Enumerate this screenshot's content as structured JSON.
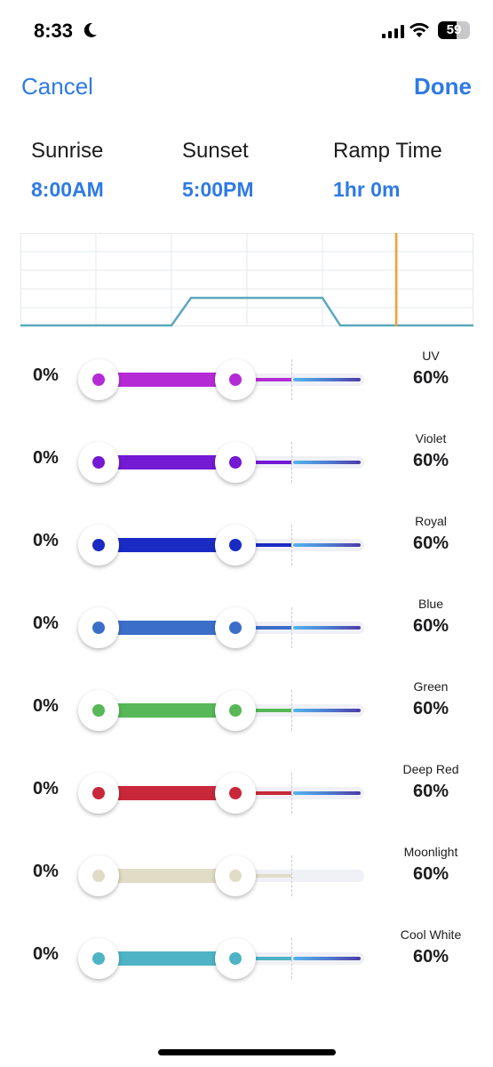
{
  "status": {
    "time": "8:33",
    "battery": "59"
  },
  "nav": {
    "cancel": "Cancel",
    "done": "Done"
  },
  "times": {
    "sunrise_label": "Sunrise",
    "sunrise_value": "8:00AM",
    "sunset_label": "Sunset",
    "sunset_value": "5:00PM",
    "ramp_label": "Ramp Time",
    "ramp_value": "1hr 0m"
  },
  "colors": {
    "accent": "#2f7ae5",
    "schedule_line": "#5aa8be",
    "current_time_marker": "#f0a23a"
  },
  "channels": [
    {
      "name": "UV",
      "min": "0%",
      "max": "60%",
      "color": "#b42bd6"
    },
    {
      "name": "Violet",
      "min": "0%",
      "max": "60%",
      "color": "#7419d4"
    },
    {
      "name": "Royal",
      "min": "0%",
      "max": "60%",
      "color": "#1a2bc4"
    },
    {
      "name": "Blue",
      "min": "0%",
      "max": "60%",
      "color": "#3b6ec8"
    },
    {
      "name": "Green",
      "min": "0%",
      "max": "60%",
      "color": "#56b857"
    },
    {
      "name": "Deep Red",
      "min": "0%",
      "max": "60%",
      "color": "#c8283a"
    },
    {
      "name": "Moonlight",
      "min": "0%",
      "max": "60%",
      "color": "#e0dcc6"
    },
    {
      "name": "Cool White",
      "min": "0%",
      "max": "60%",
      "color": "#4fb3c6"
    }
  ]
}
